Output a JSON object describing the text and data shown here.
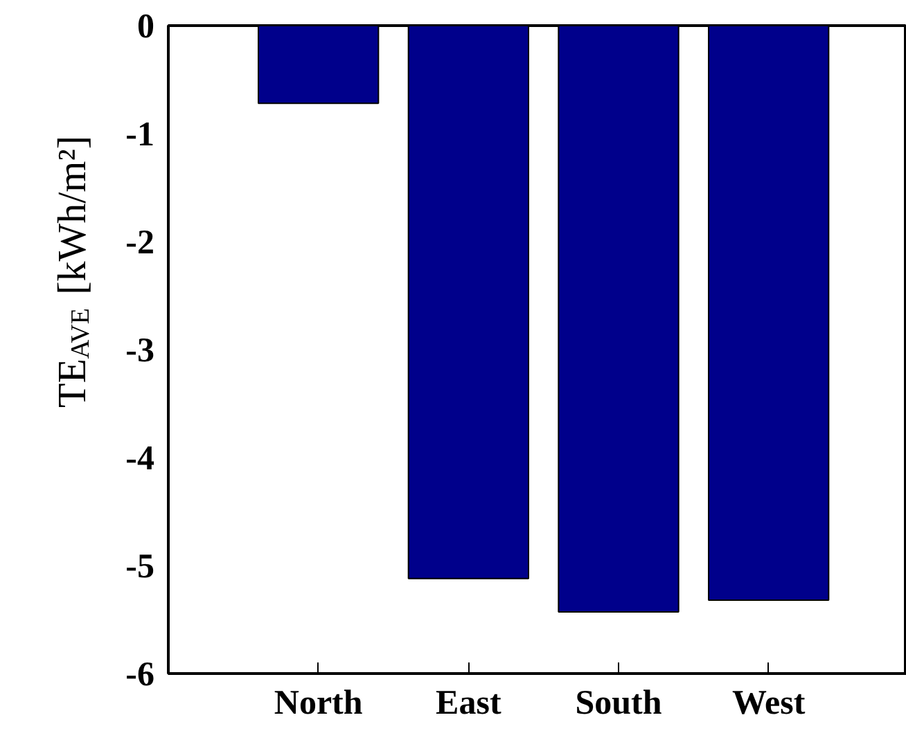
{
  "chart_data": {
    "type": "bar",
    "ylabel": "TE$_{AVE}$ [kWh/m²]",
    "categories": [
      "North",
      "East",
      "South",
      "West"
    ],
    "values": [
      -0.72,
      -5.12,
      -5.43,
      -5.32
    ],
    "color": "#00008b",
    "ylim": [
      -6,
      0
    ],
    "yticks": [
      -6,
      -5,
      -4,
      -3,
      -2,
      -1,
      0
    ],
    "grid": false
  }
}
